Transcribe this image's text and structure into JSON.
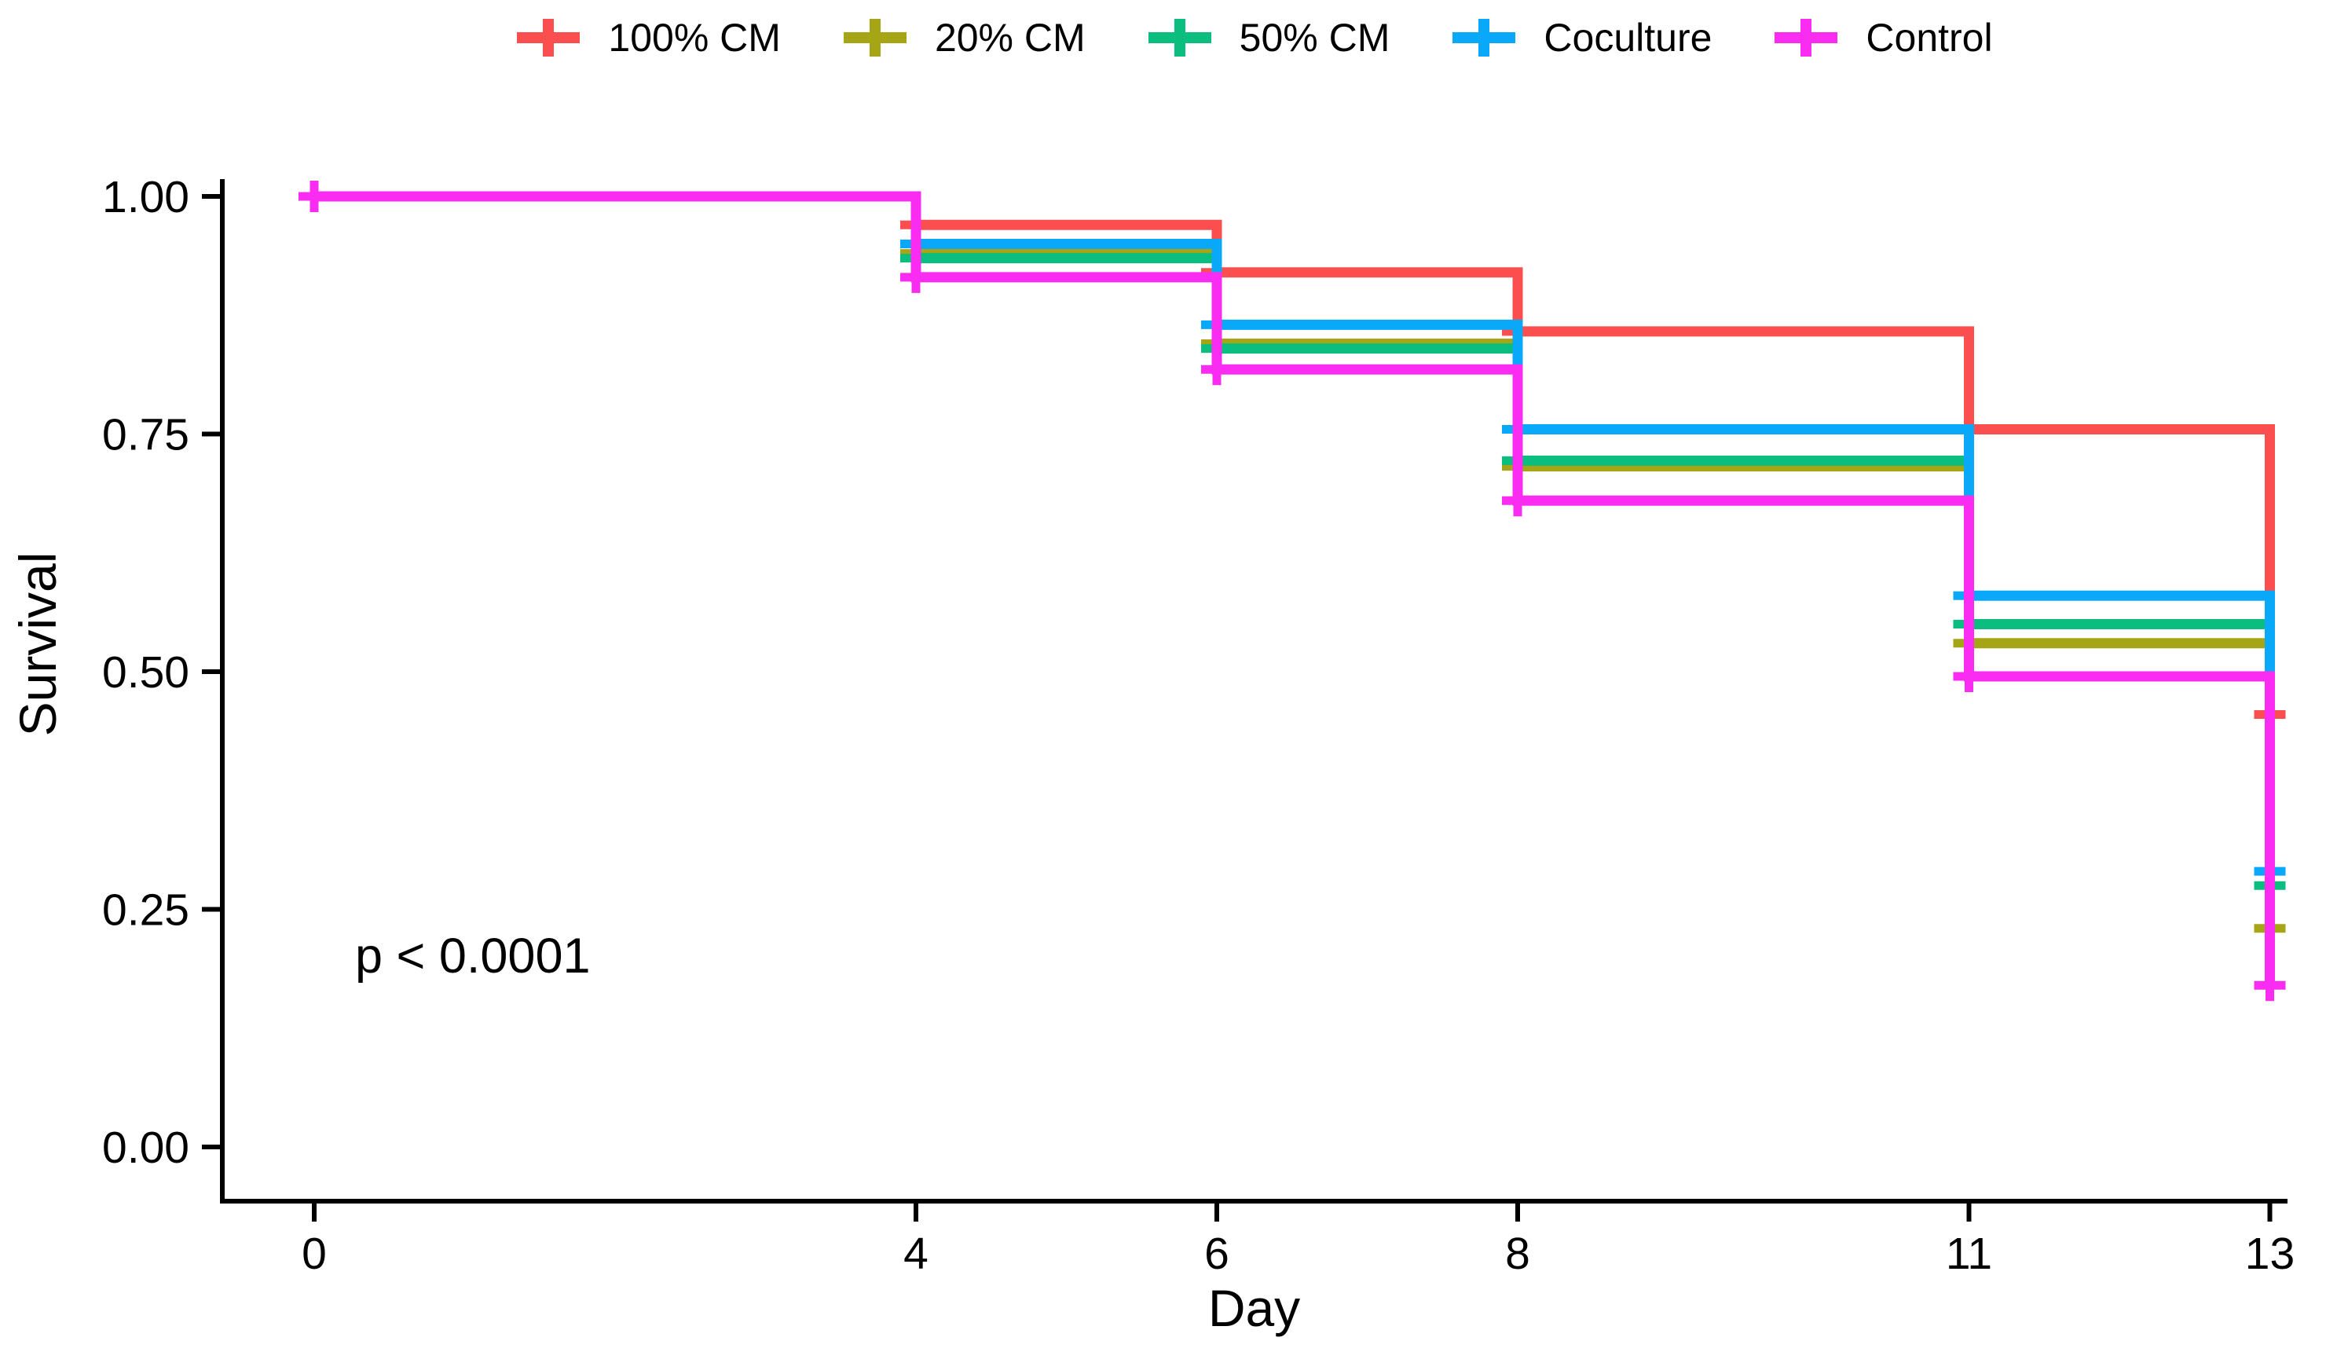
{
  "figure": {
    "p_value_text": "p < 0.0001",
    "x_axis_label": "Day",
    "y_axis_label": "Survival",
    "background_color": "#ffffff",
    "axis_color": "#000000"
  },
  "legend": {
    "position": "top-center",
    "key_glyph": "plus-cross-on-line",
    "items": [
      {
        "label": "100% CM",
        "color": "#FB4E4E"
      },
      {
        "label": "20% CM",
        "color": "#A6A516"
      },
      {
        "label": "50% CM",
        "color": "#0BBD7E"
      },
      {
        "label": "Coculture",
        "color": "#09A8F8"
      },
      {
        "label": "Control",
        "color": "#FA2CF2"
      }
    ]
  },
  "chart_data": {
    "type": "line",
    "subtype": "kaplan-meier-step",
    "title": "",
    "xlabel": "Day",
    "ylabel": "Survival",
    "annotation": "p < 0.0001",
    "x": [
      0,
      4,
      6,
      8,
      11,
      13
    ],
    "xtick_labels": [
      "0",
      "4",
      "6",
      "8",
      "11",
      "13"
    ],
    "yticks": [
      0.0,
      0.25,
      0.5,
      0.75,
      1.0
    ],
    "ytick_labels": [
      "0.00",
      "0.25",
      "0.50",
      "0.75",
      "1.00"
    ],
    "xlim": [
      -0.6,
      13.15
    ],
    "ylim": [
      0,
      1
    ],
    "grid": false,
    "legend_position": "top",
    "series": [
      {
        "name": "100% CM",
        "color": "#FB4E4E",
        "values": [
          1.0,
          0.97,
          0.92,
          0.858,
          0.755,
          0.455
        ],
        "censor_days": [
          0,
          4,
          6,
          8,
          11,
          13
        ]
      },
      {
        "name": "20% CM",
        "color": "#A6A516",
        "values": [
          1.0,
          0.94,
          0.845,
          0.716,
          0.53,
          0.23
        ],
        "censor_days": [
          0,
          4,
          6,
          8,
          11,
          13
        ]
      },
      {
        "name": "50% CM",
        "color": "#0BBD7E",
        "values": [
          1.0,
          0.935,
          0.84,
          0.722,
          0.55,
          0.275
        ],
        "censor_days": [
          0,
          4,
          6,
          8,
          11,
          13
        ]
      },
      {
        "name": "Coculture",
        "color": "#09A8F8",
        "values": [
          1.0,
          0.95,
          0.865,
          0.755,
          0.58,
          0.29
        ],
        "censor_days": [
          0,
          4,
          6,
          8,
          11,
          13
        ]
      },
      {
        "name": "Control",
        "color": "#FA2CF2",
        "values": [
          1.0,
          0.915,
          0.818,
          0.68,
          0.495,
          0.17
        ],
        "censor_days": [
          0,
          4,
          6,
          8,
          11,
          13
        ]
      }
    ]
  }
}
